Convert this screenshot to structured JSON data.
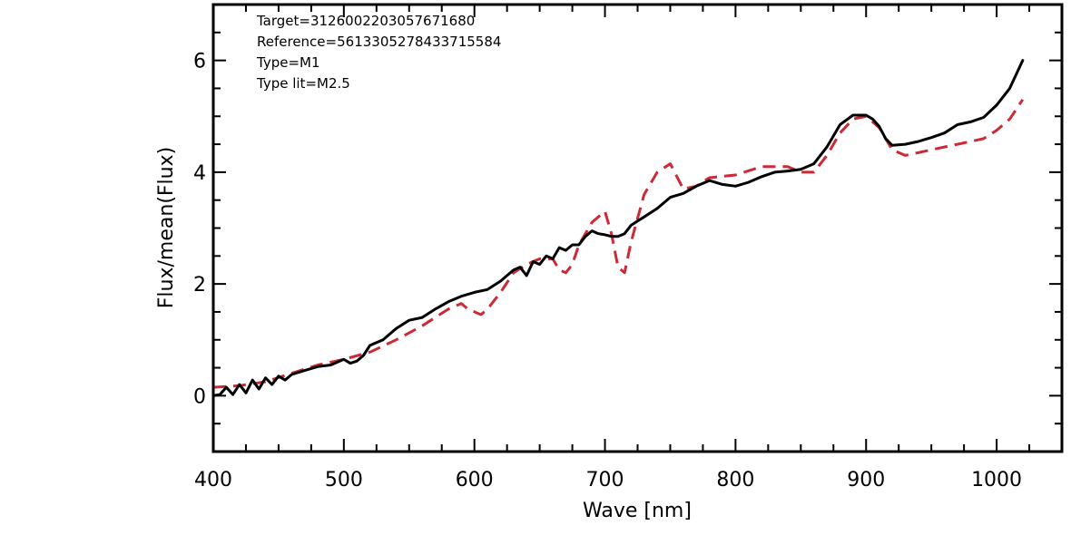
{
  "chart_data": {
    "type": "line",
    "xlabel": "Wave [nm]",
    "ylabel": "Flux/mean(Flux)",
    "xlim": [
      400,
      1050
    ],
    "ylim": [
      -1,
      7
    ],
    "x_ticks": [
      400,
      500,
      600,
      700,
      800,
      900,
      1000
    ],
    "y_ticks": [
      0,
      2,
      4,
      6
    ],
    "grid": false,
    "legend": "none",
    "annotations": [
      "Target=3126002203057671680",
      "Reference=5613305278433715584",
      "Type=M1",
      "Type lit=M2.5"
    ],
    "series": [
      {
        "style": "solid",
        "color": "#000000",
        "x": [
          400,
          405,
          410,
          415,
          420,
          425,
          430,
          435,
          440,
          445,
          450,
          455,
          460,
          470,
          480,
          490,
          500,
          505,
          510,
          515,
          520,
          530,
          540,
          550,
          560,
          570,
          580,
          590,
          600,
          610,
          620,
          630,
          635,
          640,
          645,
          650,
          655,
          660,
          665,
          670,
          675,
          680,
          685,
          690,
          695,
          700,
          705,
          710,
          715,
          720,
          730,
          740,
          750,
          760,
          770,
          780,
          790,
          800,
          810,
          820,
          830,
          840,
          850,
          860,
          870,
          880,
          890,
          900,
          905,
          910,
          915,
          920,
          930,
          940,
          950,
          960,
          970,
          980,
          990,
          1000,
          1010,
          1020
        ],
        "y": [
          0.0,
          0.02,
          0.15,
          0.02,
          0.2,
          0.05,
          0.28,
          0.12,
          0.32,
          0.2,
          0.35,
          0.28,
          0.38,
          0.45,
          0.52,
          0.55,
          0.65,
          0.58,
          0.62,
          0.72,
          0.9,
          1.0,
          1.2,
          1.35,
          1.4,
          1.55,
          1.68,
          1.78,
          1.85,
          1.9,
          2.05,
          2.25,
          2.3,
          2.15,
          2.4,
          2.35,
          2.5,
          2.45,
          2.65,
          2.6,
          2.7,
          2.7,
          2.85,
          2.95,
          2.9,
          2.88,
          2.85,
          2.85,
          2.9,
          3.05,
          3.2,
          3.35,
          3.55,
          3.62,
          3.75,
          3.85,
          3.78,
          3.75,
          3.82,
          3.92,
          4.0,
          4.02,
          4.05,
          4.15,
          4.45,
          4.85,
          5.02,
          5.02,
          4.95,
          4.82,
          4.6,
          4.48,
          4.5,
          4.55,
          4.62,
          4.7,
          4.85,
          4.9,
          4.98,
          5.2,
          5.5,
          6.0
        ]
      },
      {
        "style": "dashed",
        "color": "#cc2a36",
        "x": [
          400,
          420,
          440,
          460,
          480,
          500,
          520,
          540,
          560,
          580,
          590,
          595,
          600,
          605,
          610,
          620,
          630,
          640,
          650,
          660,
          665,
          670,
          675,
          680,
          690,
          700,
          705,
          710,
          715,
          720,
          730,
          740,
          750,
          760,
          770,
          780,
          800,
          820,
          840,
          850,
          860,
          870,
          880,
          890,
          900,
          910,
          920,
          930,
          940,
          950,
          960,
          970,
          980,
          990,
          1000,
          1010,
          1020
        ],
        "y": [
          0.15,
          0.18,
          0.25,
          0.4,
          0.55,
          0.65,
          0.78,
          1.0,
          1.25,
          1.55,
          1.65,
          1.55,
          1.5,
          1.45,
          1.55,
          1.85,
          2.2,
          2.35,
          2.45,
          2.45,
          2.25,
          2.2,
          2.35,
          2.7,
          3.1,
          3.3,
          2.9,
          2.3,
          2.2,
          2.75,
          3.6,
          4.0,
          4.15,
          3.7,
          3.75,
          3.9,
          3.95,
          4.1,
          4.1,
          4.0,
          4.0,
          4.3,
          4.7,
          4.95,
          5.0,
          4.8,
          4.4,
          4.3,
          4.35,
          4.4,
          4.45,
          4.5,
          4.55,
          4.6,
          4.75,
          4.95,
          5.3
        ]
      }
    ]
  }
}
